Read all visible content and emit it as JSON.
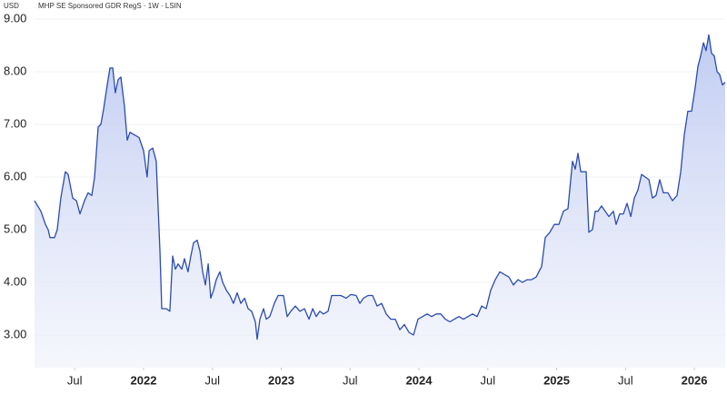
{
  "chart_data": {
    "type": "area",
    "title": "MHP SE Sponsored GDR RegS · 1W · LSIN",
    "ylabel": "USD",
    "color": "#2a4bb0",
    "grid": true,
    "xlim": [
      2021.208,
      2026.224
    ],
    "ylim": [
      2.38,
      9.2
    ],
    "yticks": [
      {
        "value": 3,
        "label": "3.00"
      },
      {
        "value": 4,
        "label": "4.00"
      },
      {
        "value": 5,
        "label": "5.00"
      },
      {
        "value": 6,
        "label": "6.00"
      },
      {
        "value": 7,
        "label": "7.00"
      },
      {
        "value": 8,
        "label": "8.00"
      },
      {
        "value": 9,
        "label": "9.00"
      }
    ],
    "xticks": [
      {
        "value": 2021.5,
        "label": "Jul"
      },
      2022,
      {
        "value": 2022.5,
        "label": "Jul"
      },
      2023,
      {
        "value": 2023.5,
        "label": "Jul"
      },
      2024,
      {
        "value": 2024.5,
        "label": "Jul"
      },
      2025,
      {
        "value": 2025.5,
        "label": "Jul"
      },
      2026
    ],
    "x": [
      2021.208,
      2021.254,
      2021.287,
      2021.307,
      2021.32,
      2021.353,
      2021.373,
      2021.399,
      2021.432,
      2021.452,
      2021.485,
      2021.512,
      2021.538,
      2021.571,
      2021.597,
      2021.624,
      2021.644,
      2021.67,
      2021.69,
      2021.71,
      2021.736,
      2021.756,
      2021.776,
      2021.795,
      2021.815,
      2021.835,
      2021.861,
      2021.881,
      2021.901,
      2021.934,
      2021.967,
      2022.0,
      2022.026,
      2022.04,
      2022.066,
      2022.092,
      2022.119,
      2022.132,
      2022.165,
      2022.191,
      2022.211,
      2022.231,
      2022.251,
      2022.277,
      2022.297,
      2022.323,
      2022.343,
      2022.363,
      2022.389,
      2022.409,
      2022.429,
      2022.449,
      2022.469,
      2022.488,
      2022.508,
      2022.528,
      2022.554,
      2022.574,
      2022.601,
      2022.627,
      2022.653,
      2022.68,
      2022.706,
      2022.733,
      2022.759,
      2022.785,
      2022.812,
      2022.825,
      2022.845,
      2022.871,
      2022.891,
      2022.917,
      2022.95,
      2022.977,
      2023.016,
      2023.043,
      2023.069,
      2023.102,
      2023.135,
      2023.168,
      2023.201,
      2023.228,
      2023.254,
      2023.28,
      2023.307,
      2023.34,
      2023.366,
      2023.399,
      2023.432,
      2023.472,
      2023.505,
      2023.544,
      2023.571,
      2023.597,
      2023.63,
      2023.663,
      2023.696,
      2023.729,
      2023.762,
      2023.795,
      2023.828,
      2023.861,
      2023.894,
      2023.927,
      2023.96,
      2023.993,
      2024.026,
      2024.059,
      2024.092,
      2024.125,
      2024.158,
      2024.191,
      2024.224,
      2024.257,
      2024.29,
      2024.323,
      2024.356,
      2024.389,
      2024.422,
      2024.455,
      2024.488,
      2024.521,
      2024.554,
      2024.587,
      2024.62,
      2024.653,
      2024.686,
      2024.719,
      2024.752,
      2024.785,
      2024.818,
      2024.851,
      2024.891,
      2024.917,
      2024.95,
      2024.983,
      2025.016,
      2025.049,
      2025.082,
      2025.102,
      2025.115,
      2025.135,
      2025.155,
      2025.175,
      2025.214,
      2025.234,
      2025.26,
      2025.28,
      2025.3,
      2025.326,
      2025.353,
      2025.379,
      2025.412,
      2025.432,
      2025.458,
      2025.485,
      2025.511,
      2025.538,
      2025.564,
      2025.59,
      2025.617,
      2025.643,
      2025.67,
      2025.696,
      2025.722,
      2025.749,
      2025.775,
      2025.808,
      2025.841,
      2025.874,
      2025.901,
      2025.927,
      2025.953,
      2025.98,
      2026.006,
      2026.026,
      2026.046,
      2026.066,
      2026.085,
      2026.105,
      2026.125,
      2026.145,
      2026.165,
      2026.184,
      2026.204,
      2026.224
    ],
    "values": [
      5.55,
      5.35,
      5.1,
      5.0,
      4.85,
      4.85,
      5.0,
      5.6,
      6.1,
      6.05,
      5.6,
      5.55,
      5.3,
      5.55,
      5.7,
      5.65,
      6.0,
      6.95,
      7.0,
      7.3,
      7.75,
      8.07,
      8.07,
      7.6,
      7.85,
      7.9,
      7.35,
      6.7,
      6.85,
      6.8,
      6.75,
      6.5,
      6.0,
      6.5,
      6.55,
      6.3,
      4.6,
      3.5,
      3.5,
      3.45,
      4.5,
      4.25,
      4.35,
      4.25,
      4.45,
      4.2,
      4.5,
      4.75,
      4.8,
      4.6,
      4.2,
      3.95,
      4.35,
      3.7,
      3.85,
      4.05,
      4.2,
      4.0,
      3.85,
      3.75,
      3.6,
      3.8,
      3.6,
      3.7,
      3.5,
      3.45,
      3.25,
      2.92,
      3.3,
      3.5,
      3.3,
      3.35,
      3.6,
      3.75,
      3.75,
      3.35,
      3.45,
      3.55,
      3.45,
      3.5,
      3.3,
      3.5,
      3.35,
      3.45,
      3.4,
      3.45,
      3.75,
      3.75,
      3.75,
      3.7,
      3.77,
      3.75,
      3.6,
      3.7,
      3.75,
      3.75,
      3.55,
      3.6,
      3.4,
      3.3,
      3.3,
      3.1,
      3.2,
      3.05,
      3.0,
      3.3,
      3.35,
      3.4,
      3.35,
      3.4,
      3.4,
      3.3,
      3.25,
      3.3,
      3.35,
      3.3,
      3.35,
      3.4,
      3.35,
      3.55,
      3.5,
      3.85,
      4.05,
      4.2,
      4.15,
      4.1,
      3.95,
      4.05,
      4.0,
      4.05,
      4.05,
      4.1,
      4.3,
      4.85,
      4.95,
      5.1,
      5.1,
      5.35,
      5.4,
      5.95,
      6.3,
      6.15,
      6.45,
      6.1,
      6.1,
      4.95,
      5.0,
      5.35,
      5.35,
      5.45,
      5.35,
      5.25,
      5.35,
      5.1,
      5.3,
      5.3,
      5.5,
      5.25,
      5.6,
      5.75,
      6.05,
      6.0,
      5.95,
      5.6,
      5.65,
      5.95,
      5.7,
      5.7,
      5.55,
      5.65,
      6.1,
      6.8,
      7.25,
      7.25,
      7.7,
      8.1,
      8.3,
      8.55,
      8.4,
      8.7,
      8.35,
      8.3,
      8.0,
      7.95,
      7.75,
      7.8
    ]
  }
}
